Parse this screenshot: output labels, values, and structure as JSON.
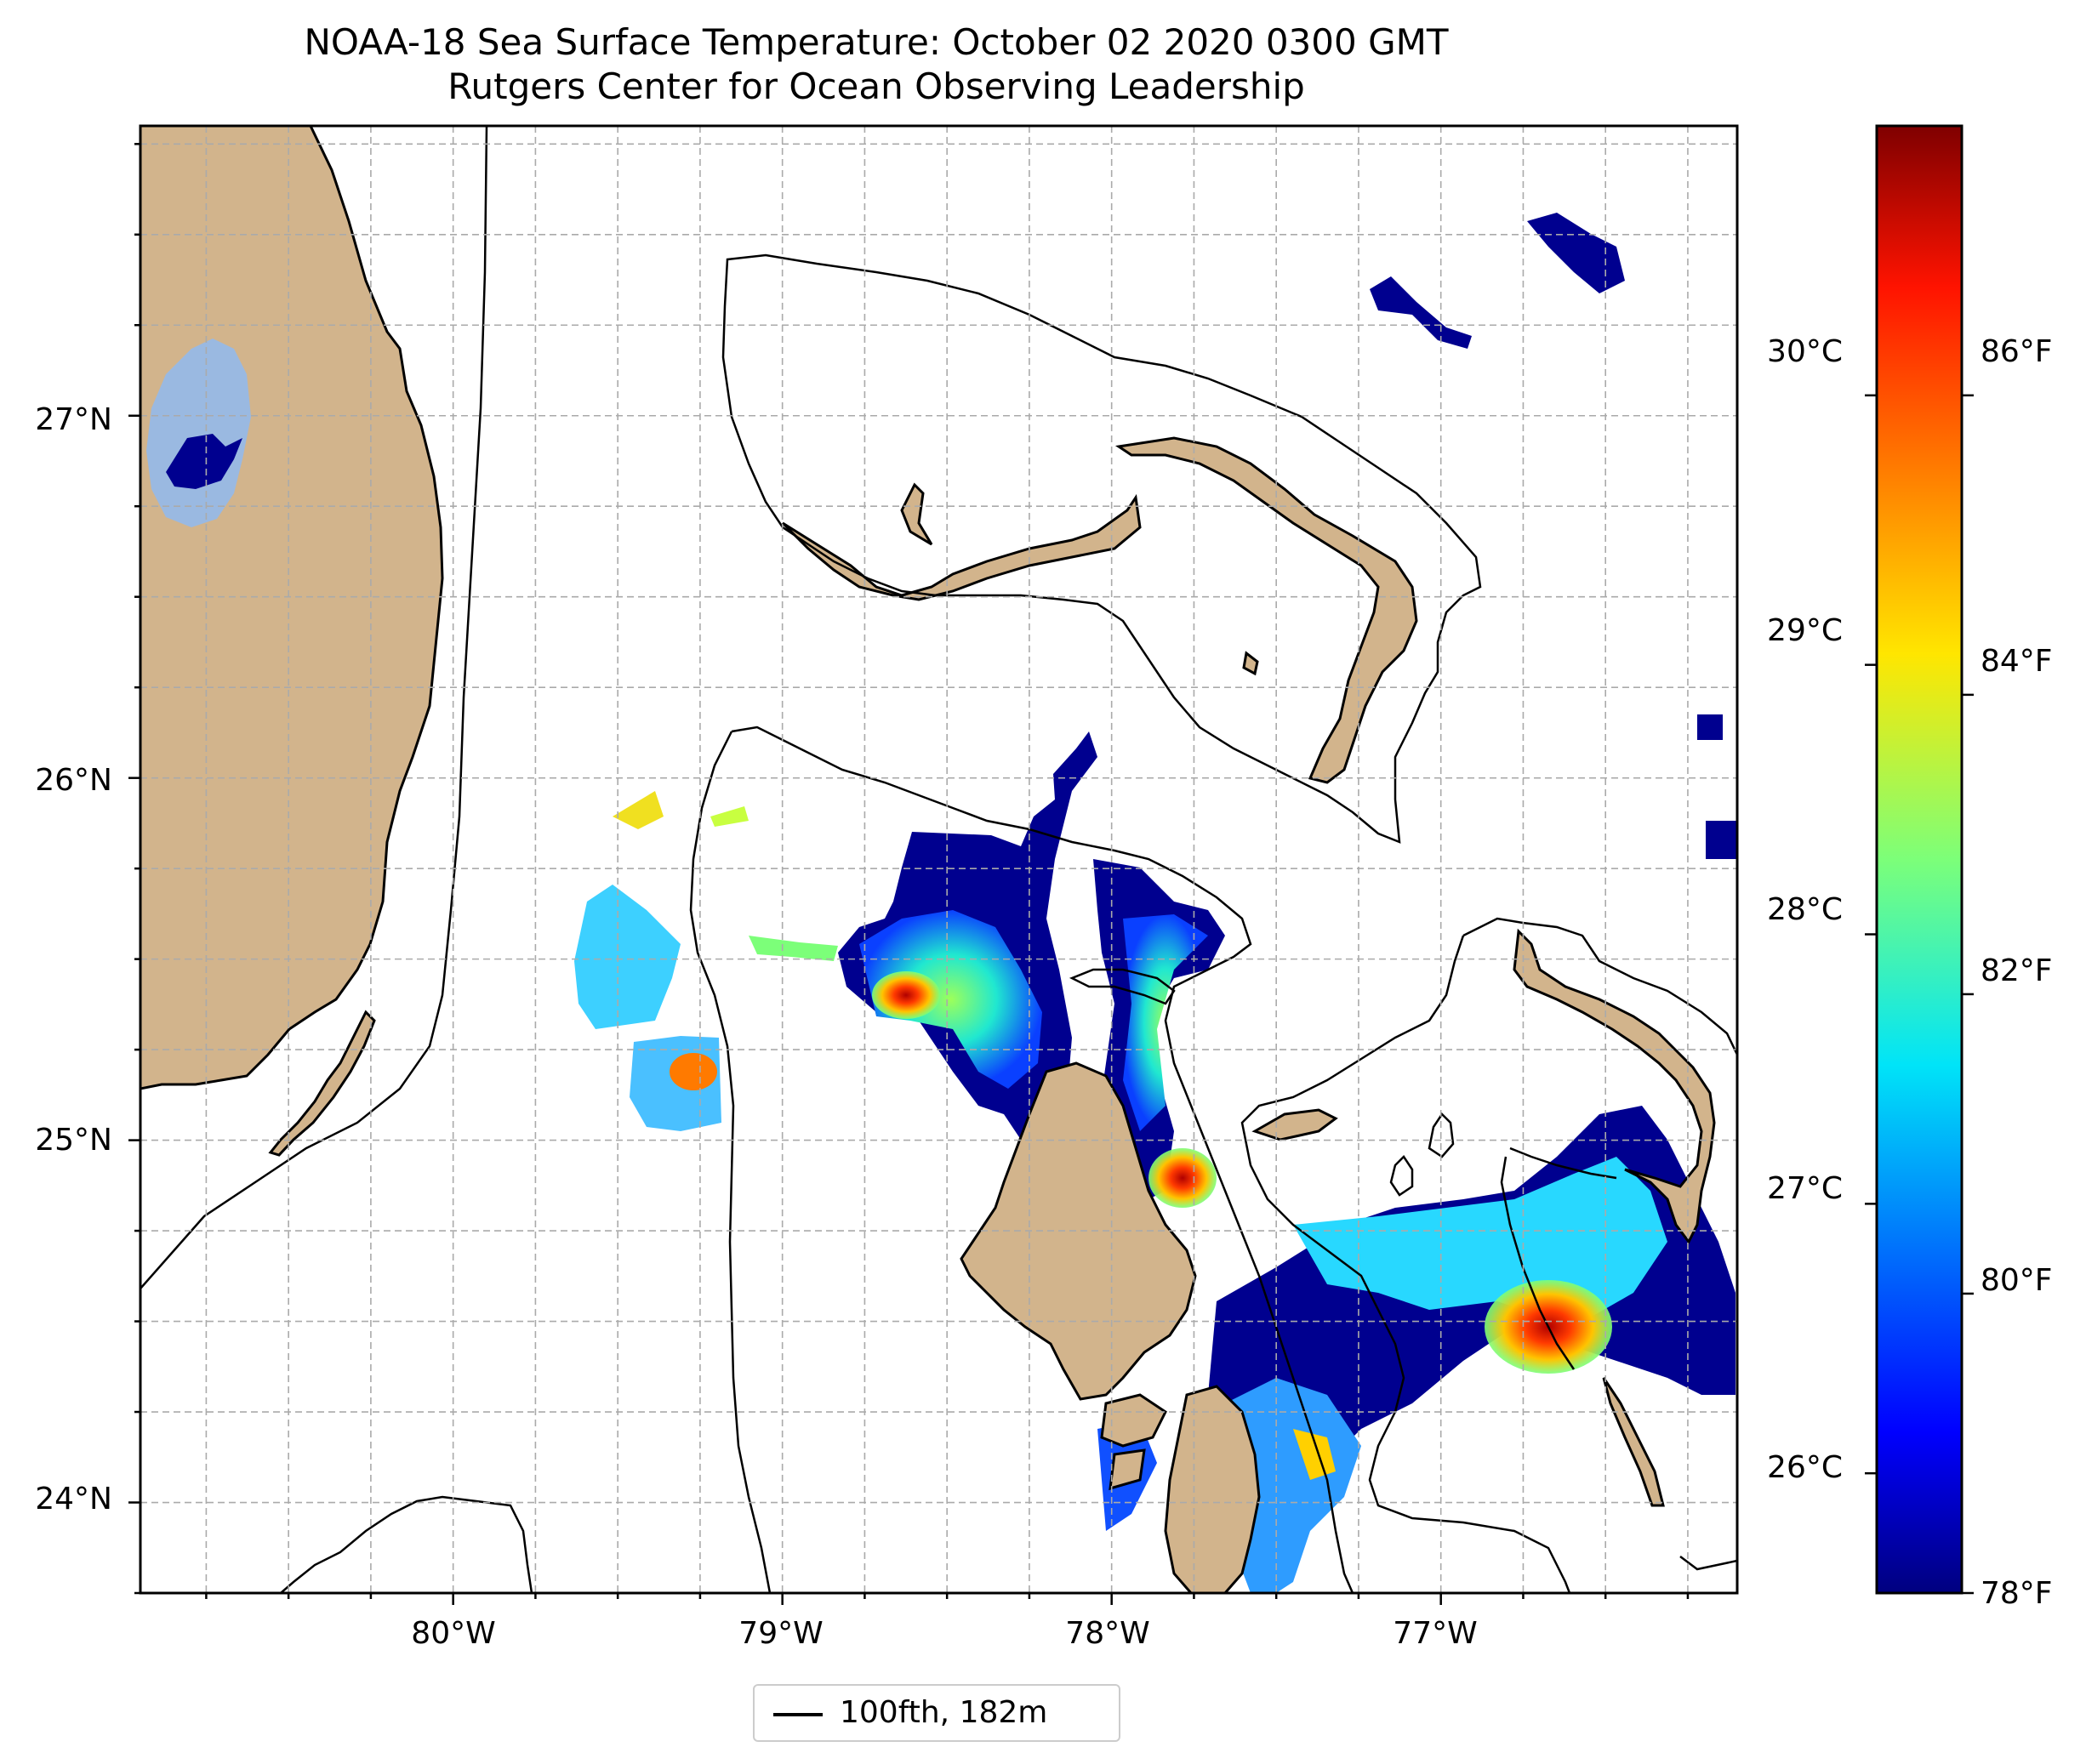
{
  "title": {
    "line1": "NOAA-18 Sea Surface Temperature: October 02 2020 0300 GMT",
    "line2": "Rutgers Center for Ocean Observing Leadership"
  },
  "map": {
    "lon_range": [
      -80.95,
      -76.1
    ],
    "lat_range": [
      23.75,
      27.8
    ],
    "lon_ticks": [
      {
        "value": -80,
        "label": "80°W"
      },
      {
        "value": -79,
        "label": "79°W"
      },
      {
        "value": -78,
        "label": "78°W"
      },
      {
        "value": -77,
        "label": "77°W"
      }
    ],
    "lat_ticks": [
      {
        "value": 24,
        "label": "24°N"
      },
      {
        "value": 25,
        "label": "25°N"
      },
      {
        "value": 26,
        "label": "26°N"
      },
      {
        "value": 27,
        "label": "27°N"
      }
    ],
    "grid": true,
    "land_color": "#d2b48c",
    "lake_color": "#9ab9e1"
  },
  "colorbar": {
    "colormap": "jet",
    "fahrenheit_range": [
      78,
      87.8
    ],
    "celsius_ticks": [
      {
        "value": 26,
        "label": "26°C"
      },
      {
        "value": 27,
        "label": "27°C"
      },
      {
        "value": 28,
        "label": "28°C"
      },
      {
        "value": 29,
        "label": "29°C"
      },
      {
        "value": 30,
        "label": "30°C"
      }
    ],
    "fahrenheit_ticks": [
      {
        "value": 78,
        "label": "78°F"
      },
      {
        "value": 80,
        "label": "80°F"
      },
      {
        "value": 82,
        "label": "82°F"
      },
      {
        "value": 84,
        "label": "84°F"
      },
      {
        "value": 86,
        "label": "86°F"
      }
    ]
  },
  "legend": {
    "label": "100fth, 182m",
    "line_color": "#000000"
  }
}
